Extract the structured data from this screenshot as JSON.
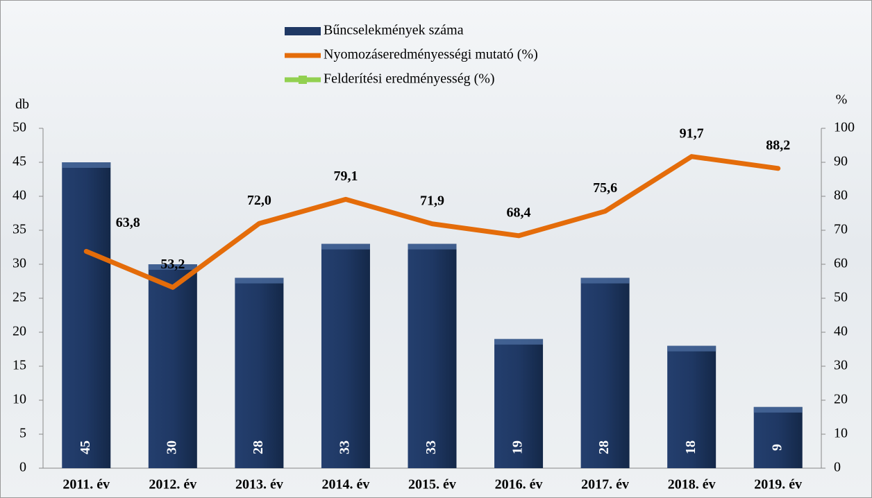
{
  "chart_data": {
    "type": "bar",
    "categories": [
      "2011. év",
      "2012. év",
      "2013. év",
      "2014. év",
      "2015. év",
      "2016. év",
      "2017. év",
      "2018. év",
      "2019. év"
    ],
    "series": [
      {
        "name": "Bűncselekmények száma",
        "color": "#1f3864",
        "values": [
          45,
          30,
          28,
          33,
          33,
          19,
          28,
          18,
          9
        ]
      },
      {
        "name": "Nyomozáseredményességi mutató (%)",
        "color": "#e46c0a",
        "axis": "y2",
        "type": "line",
        "values": [
          63.8,
          53.2,
          72.0,
          79.1,
          71.9,
          68.4,
          75.6,
          91.7,
          88.2
        ],
        "value_labels": [
          "63,8",
          "53,2",
          "72,0",
          "79,1",
          "71,9",
          "68,4",
          "75,6",
          "91,7",
          "88,2"
        ]
      },
      {
        "name": "Felderítési eredményesség (%)",
        "color": "#92d050",
        "axis": "y2",
        "type": "line",
        "values": [
          null,
          null,
          null,
          null,
          null,
          null,
          null,
          null,
          null
        ]
      }
    ],
    "ylabel": "db",
    "y2label": "%",
    "ylim": [
      0,
      50
    ],
    "yticks": [
      0,
      5,
      10,
      15,
      20,
      25,
      30,
      35,
      40,
      45,
      50
    ],
    "y2lim": [
      0,
      100
    ],
    "y2ticks": [
      0,
      10,
      20,
      30,
      40,
      50,
      60,
      70,
      80,
      90,
      100
    ]
  }
}
